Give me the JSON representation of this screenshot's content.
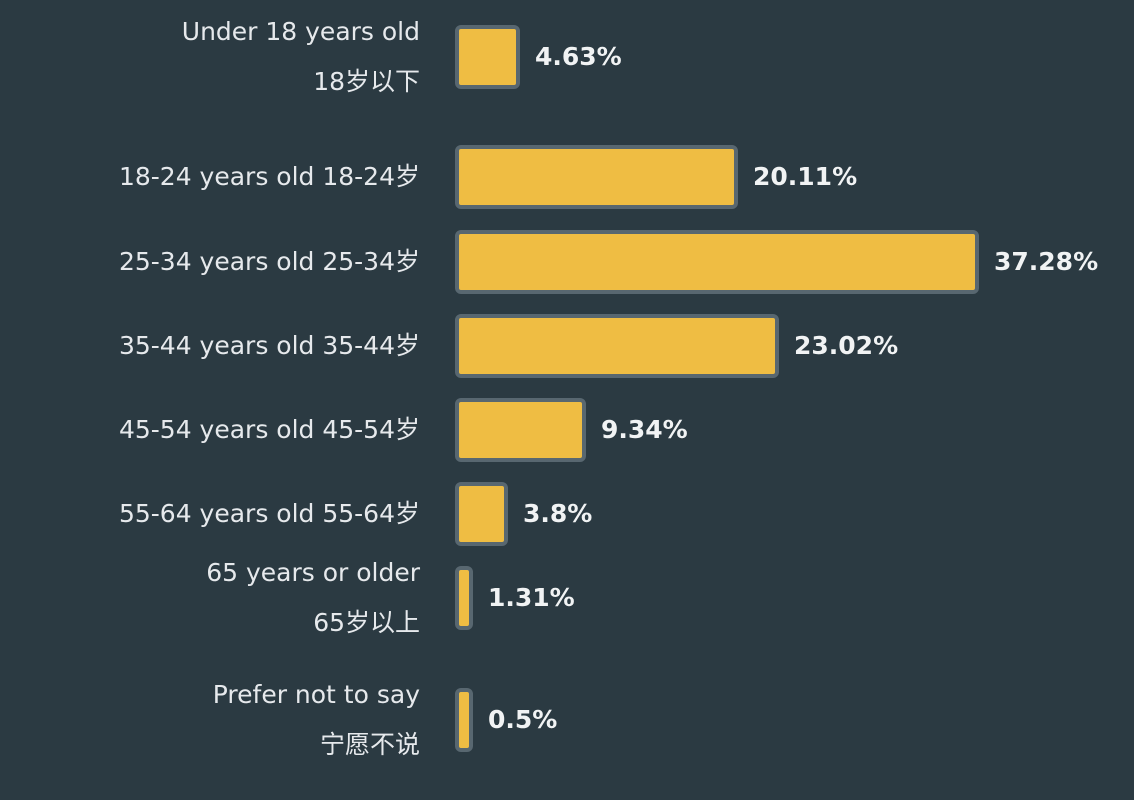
{
  "chart_data": {
    "type": "bar",
    "orientation": "horizontal",
    "categories": [
      [
        "Under 18 years old",
        "18岁以下"
      ],
      [
        "18-24 years old 18-24岁"
      ],
      [
        "25-34 years old 25-34岁"
      ],
      [
        "35-44 years old 35-44岁"
      ],
      [
        "45-54 years old 45-54岁"
      ],
      [
        "55-64 years old 55-64岁"
      ],
      [
        "65 years or older",
        "65岁以上"
      ],
      [
        "Prefer not to say",
        "宁愿不说"
      ]
    ],
    "values": [
      4.63,
      20.11,
      37.28,
      23.02,
      9.34,
      3.8,
      1.31,
      0.5
    ],
    "value_labels": [
      "4.63%",
      "20.11%",
      "37.28%",
      "23.02%",
      "9.34%",
      "3.8%",
      "1.31%",
      "0.5%"
    ],
    "xlim": [
      0,
      37.28
    ],
    "grid": false,
    "colors": {
      "background": "#2b3a42",
      "bar_fill": "#efbd43",
      "bar_border": "#586770",
      "text": "#e6e9ec"
    }
  }
}
